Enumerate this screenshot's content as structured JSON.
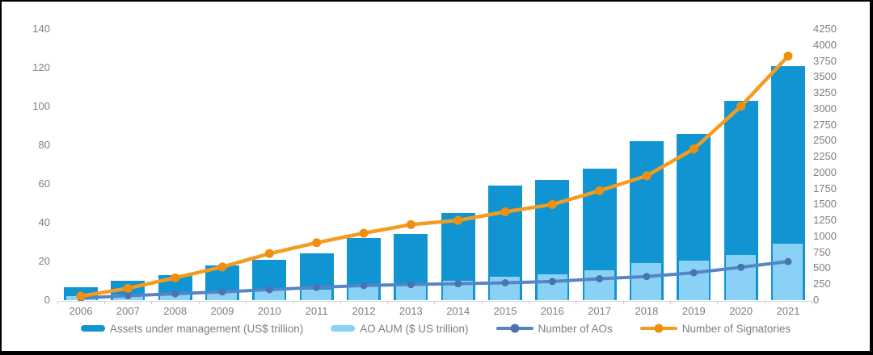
{
  "chart": {
    "title": "",
    "background": "#ffffff",
    "frame_color": "#000000",
    "axis_text_color": "#7f7f7f",
    "axis_line_color": "#d9d9d9"
  },
  "chart_data": {
    "type": "combo (overlay bars + lines, dual axis)",
    "title": "",
    "xlabel": "",
    "ylabel_left": "",
    "ylabel_right": "",
    "grid": "off",
    "legend_position": "bottom",
    "categories": [
      "2006",
      "2007",
      "2008",
      "2009",
      "2010",
      "2011",
      "2012",
      "2013",
      "2014",
      "2015",
      "2016",
      "2017",
      "2018",
      "2019",
      "2020",
      "2021"
    ],
    "series": [
      {
        "name": "Assets under management (US$ trillion)",
        "type": "bar",
        "axis": "left",
        "color": "#1095d2",
        "values": [
          6.5,
          10,
          13,
          18,
          21,
          24,
          32,
          34,
          45,
          59,
          62,
          68,
          82,
          86,
          103,
          121
        ]
      },
      {
        "name": "AO AUM ($ US trillion)",
        "type": "bar",
        "axis": "left",
        "color": "#8ad2f5",
        "values": [
          2,
          3,
          3.5,
          4,
          5,
          5.5,
          7.6,
          8.4,
          10,
          12.2,
          13.2,
          15.5,
          19,
          20.5,
          23.5,
          29
        ]
      },
      {
        "name": "Number of AOs",
        "type": "line",
        "axis": "right",
        "color": "#5585c6",
        "marker_color": "#4a74ae",
        "values": [
          32,
          70,
          100,
          130,
          165,
          200,
          230,
          245,
          258,
          272,
          292,
          335,
          370,
          430,
          515,
          605
        ]
      },
      {
        "name": "Number of Signatories",
        "type": "line",
        "axis": "right",
        "color": "#f39c1f",
        "marker_color": "#ee8f10",
        "values": [
          63,
          185,
          350,
          520,
          730,
          900,
          1050,
          1185,
          1250,
          1385,
          1500,
          1715,
          1950,
          2370,
          3040,
          3826
        ]
      }
    ],
    "left_axis": {
      "min": 0,
      "max": 140,
      "step": 20,
      "tick_labels": [
        "0",
        "20",
        "40",
        "60",
        "80",
        "100",
        "120",
        "140"
      ]
    },
    "right_axis": {
      "min": 0,
      "max": 4250,
      "step": 250,
      "tick_labels": [
        "0",
        "250",
        "500",
        "750",
        "1000",
        "1250",
        "1500",
        "1750",
        "2000",
        "2250",
        "2500",
        "2750",
        "3000",
        "3250",
        "3500",
        "3750",
        "4000",
        "4250"
      ]
    }
  }
}
